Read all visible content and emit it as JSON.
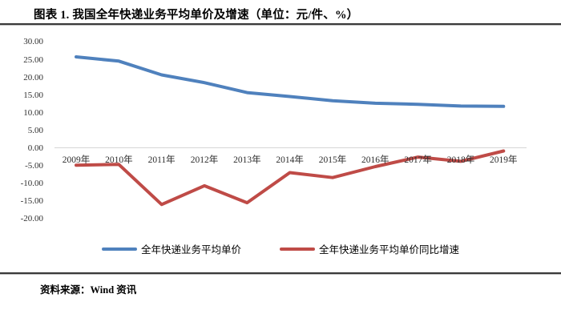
{
  "title": "图表 1. 我国全年快递业务平均单价及增速（单位：元/件、%）",
  "source_note": "资料来源：Wind 资讯",
  "colors": {
    "price_line": "#4F81BD",
    "growth_line": "#BF4B47",
    "zero_gridline": "#D6D6D6",
    "divider": "#3A3A3A"
  },
  "legend": {
    "items": [
      {
        "label": "全年快递业务平均单价",
        "color": "#4F81BD"
      },
      {
        "label": "全年快递业务平均单价同比增速",
        "color": "#BF4B47"
      }
    ]
  },
  "chart_data": {
    "type": "line",
    "title": "我国全年快递业务平均单价及增速",
    "units": "元/件、%",
    "categories": [
      "2009年",
      "2010年",
      "2011年",
      "2012年",
      "2013年",
      "2014年",
      "2015年",
      "2016年",
      "2017年",
      "2018年",
      "2019年"
    ],
    "series": [
      {
        "name": "全年快递业务平均单价",
        "color": "#4F81BD",
        "values": [
          25.8,
          24.6,
          20.7,
          18.5,
          15.7,
          14.6,
          13.4,
          12.7,
          12.4,
          11.9,
          11.8
        ]
      },
      {
        "name": "全年快递业务平均单价同比增速",
        "color": "#BF4B47",
        "values": [
          -4.8,
          -4.6,
          -15.9,
          -10.6,
          -15.4,
          -6.9,
          -8.3,
          -5.2,
          -2.5,
          -3.7,
          -0.8
        ]
      }
    ],
    "yticks": [
      30,
      25,
      20,
      15,
      10,
      5,
      0,
      -5,
      -10,
      -15,
      -20
    ],
    "ytick_decimals": 2,
    "ylim": [
      -20,
      30
    ],
    "grid": "horizontal zero line only",
    "legend_position": "bottom"
  }
}
